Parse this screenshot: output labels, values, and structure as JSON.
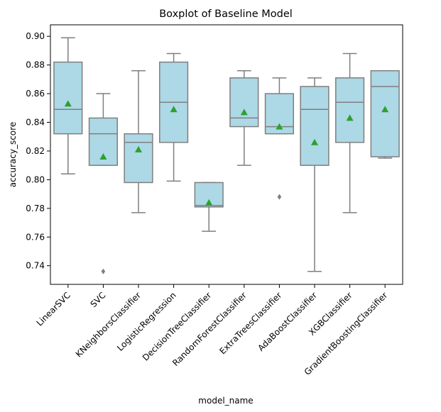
{
  "chart_data": {
    "type": "box",
    "title": "Boxplot of Baseline Model",
    "xlabel": "model_name",
    "ylabel": "accuracy_score",
    "ylim": [
      0.727,
      0.908
    ],
    "yticks": [
      "0.74",
      "0.76",
      "0.78",
      "0.80",
      "0.82",
      "0.84",
      "0.86",
      "0.88",
      "0.90"
    ],
    "grid": false,
    "legend": "none",
    "box_color": "#add8e6",
    "edge_color": "#7f7f7f",
    "mean_color": "#2ca02c",
    "categories": [
      "LinearSVC",
      "SVC",
      "KNeighborsClassifier",
      "LogisticRegression",
      "DecisionTreeClassifier",
      "RandomForestClassifier",
      "ExtraTreesClassifier",
      "AdaBoostClassifier",
      "XGBClassifier",
      "GradientBoostingClassifier"
    ],
    "boxes": [
      {
        "whislo": 0.804,
        "q1": 0.832,
        "med": 0.849,
        "q3": 0.882,
        "whishi": 0.899,
        "mean": 0.853,
        "fliers": []
      },
      {
        "whislo": 0.81,
        "q1": 0.81,
        "med": 0.832,
        "q3": 0.843,
        "whishi": 0.86,
        "mean": 0.816,
        "fliers": [
          0.736
        ]
      },
      {
        "whislo": 0.777,
        "q1": 0.798,
        "med": 0.826,
        "q3": 0.832,
        "whishi": 0.876,
        "mean": 0.821,
        "fliers": []
      },
      {
        "whislo": 0.799,
        "q1": 0.826,
        "med": 0.854,
        "q3": 0.882,
        "whishi": 0.888,
        "mean": 0.849,
        "fliers": []
      },
      {
        "whislo": 0.764,
        "q1": 0.781,
        "med": 0.782,
        "q3": 0.798,
        "whishi": 0.798,
        "mean": 0.784,
        "fliers": []
      },
      {
        "whislo": 0.81,
        "q1": 0.837,
        "med": 0.843,
        "q3": 0.871,
        "whishi": 0.876,
        "mean": 0.847,
        "fliers": []
      },
      {
        "whislo": 0.832,
        "q1": 0.832,
        "med": 0.837,
        "q3": 0.86,
        "whishi": 0.871,
        "mean": 0.837,
        "fliers": [
          0.788
        ]
      },
      {
        "whislo": 0.736,
        "q1": 0.81,
        "med": 0.849,
        "q3": 0.865,
        "whishi": 0.871,
        "mean": 0.826,
        "fliers": []
      },
      {
        "whislo": 0.777,
        "q1": 0.826,
        "med": 0.854,
        "q3": 0.871,
        "whishi": 0.888,
        "mean": 0.843,
        "fliers": []
      },
      {
        "whislo": 0.815,
        "q1": 0.816,
        "med": 0.865,
        "q3": 0.876,
        "whishi": 0.876,
        "mean": 0.849,
        "fliers": []
      }
    ]
  }
}
